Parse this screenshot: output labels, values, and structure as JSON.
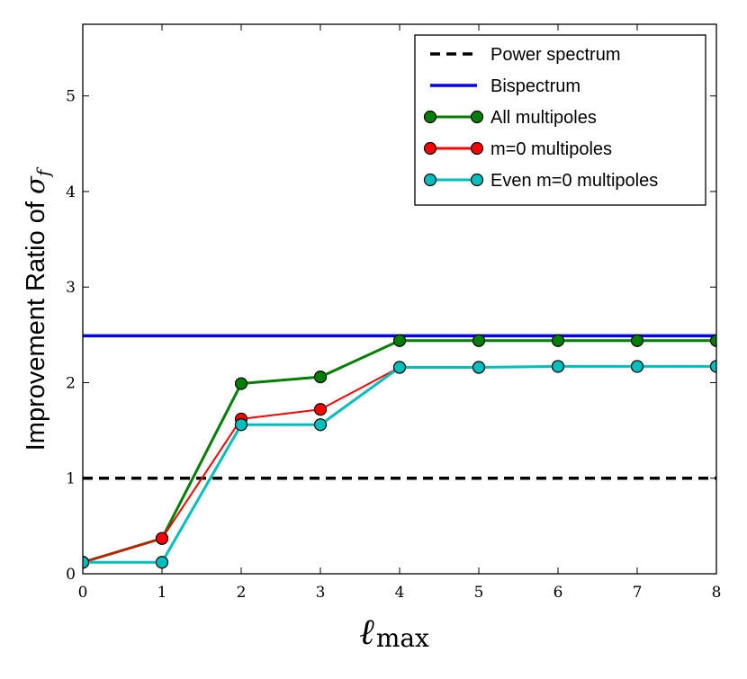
{
  "chart_data": {
    "type": "line",
    "x": [
      0,
      1,
      2,
      3,
      4,
      5,
      6,
      7,
      8
    ],
    "xlim": [
      0,
      8
    ],
    "ylim": [
      0,
      5.75
    ],
    "xticks": [
      "0",
      "1",
      "2",
      "3",
      "4",
      "5",
      "6",
      "7",
      "8"
    ],
    "yticks": [
      "0",
      "1",
      "2",
      "3",
      "4",
      "5"
    ],
    "xlabel_main": "ℓ",
    "xlabel_sub": "max",
    "ylabel_text": "Improvement Ratio of ",
    "ylabel_symbol": "σ",
    "ylabel_subscript": "f",
    "legend_position": "top-right",
    "grid": false,
    "series": [
      {
        "name": "Power spectrum",
        "style": "dashed",
        "color": "#000000",
        "values": [
          1,
          1,
          1,
          1,
          1,
          1,
          1,
          1,
          1
        ],
        "markers": false
      },
      {
        "name": "Bispectrum",
        "style": "solid",
        "color": "#0000ff",
        "values": [
          2.49,
          2.49,
          2.49,
          2.49,
          2.49,
          2.49,
          2.49,
          2.49,
          2.49
        ],
        "markers": false
      },
      {
        "name": "All multipoles",
        "style": "solid",
        "color": "#007f00",
        "values": [
          0.12,
          0.37,
          1.99,
          2.06,
          2.44,
          2.44,
          2.44,
          2.44,
          2.44
        ],
        "markers": true
      },
      {
        "name": "m=0 multipoles",
        "style": "solid",
        "color": "#ff0000",
        "values": [
          0.12,
          0.37,
          1.62,
          1.72,
          2.16,
          2.16,
          2.17,
          2.17,
          2.17
        ],
        "markers": true
      },
      {
        "name": "Even m=0 multipoles",
        "style": "solid",
        "color": "#00bfbf",
        "values": [
          0.12,
          0.12,
          1.56,
          1.56,
          2.16,
          2.16,
          2.17,
          2.17,
          2.17
        ],
        "markers": true
      }
    ]
  }
}
